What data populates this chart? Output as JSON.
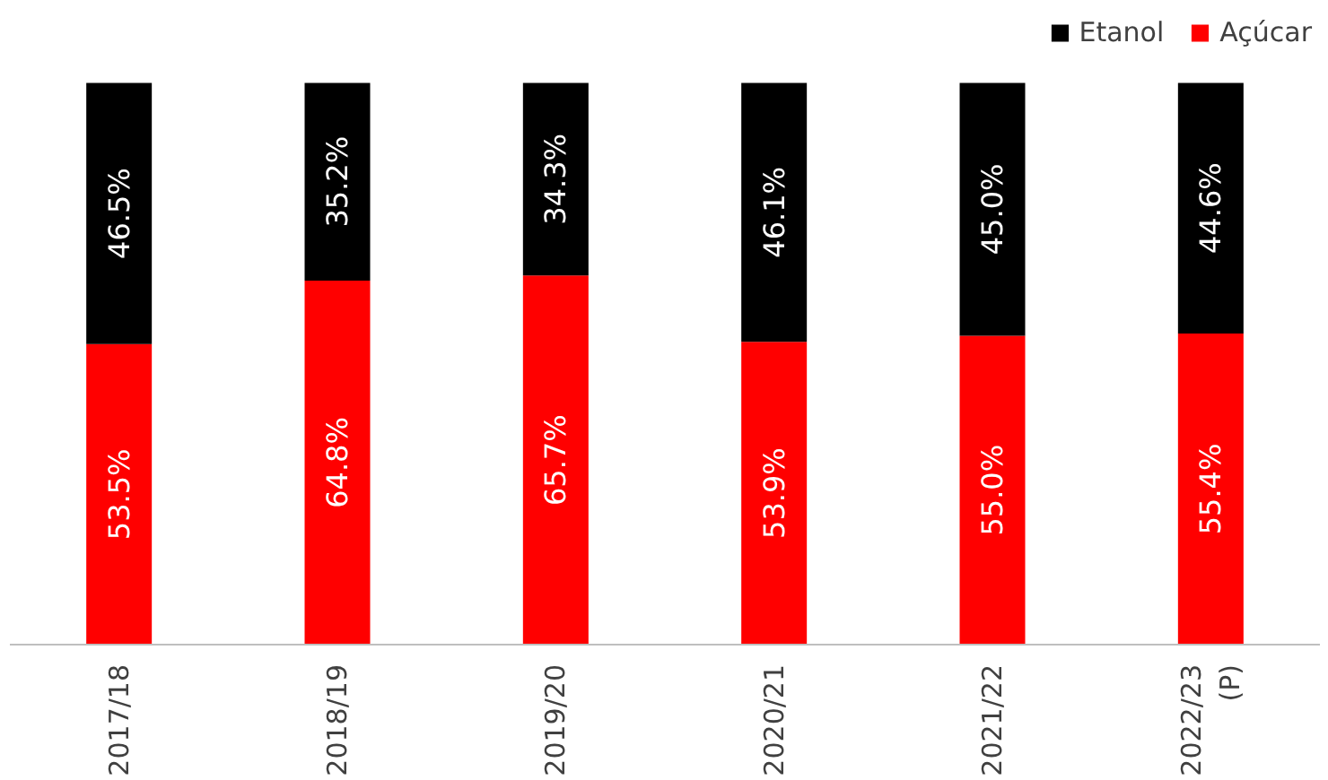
{
  "chart_data": {
    "type": "bar",
    "stacked": true,
    "data_labels": true,
    "legend": "top right",
    "grid": false,
    "categories": [
      "2017/18",
      "2018/19",
      "2019/20",
      "2020/21",
      "2021/22",
      "2022/23\n(P)"
    ],
    "series": [
      {
        "name": "Açúcar",
        "color": "#ff0000",
        "values": [
          53.5,
          64.8,
          65.7,
          53.9,
          55.0,
          55.4
        ],
        "value_labels": [
          "53.5%",
          "64.8%",
          "65.7%",
          "53.9%",
          "55.0%",
          "55.4%"
        ]
      },
      {
        "name": "Etanol",
        "color": "#000000",
        "values": [
          46.5,
          35.2,
          34.3,
          46.1,
          45.0,
          44.6
        ],
        "value_labels": [
          "46.5%",
          "35.2%",
          "34.3%",
          "46.1%",
          "45.0%",
          "44.6%"
        ]
      }
    ]
  }
}
